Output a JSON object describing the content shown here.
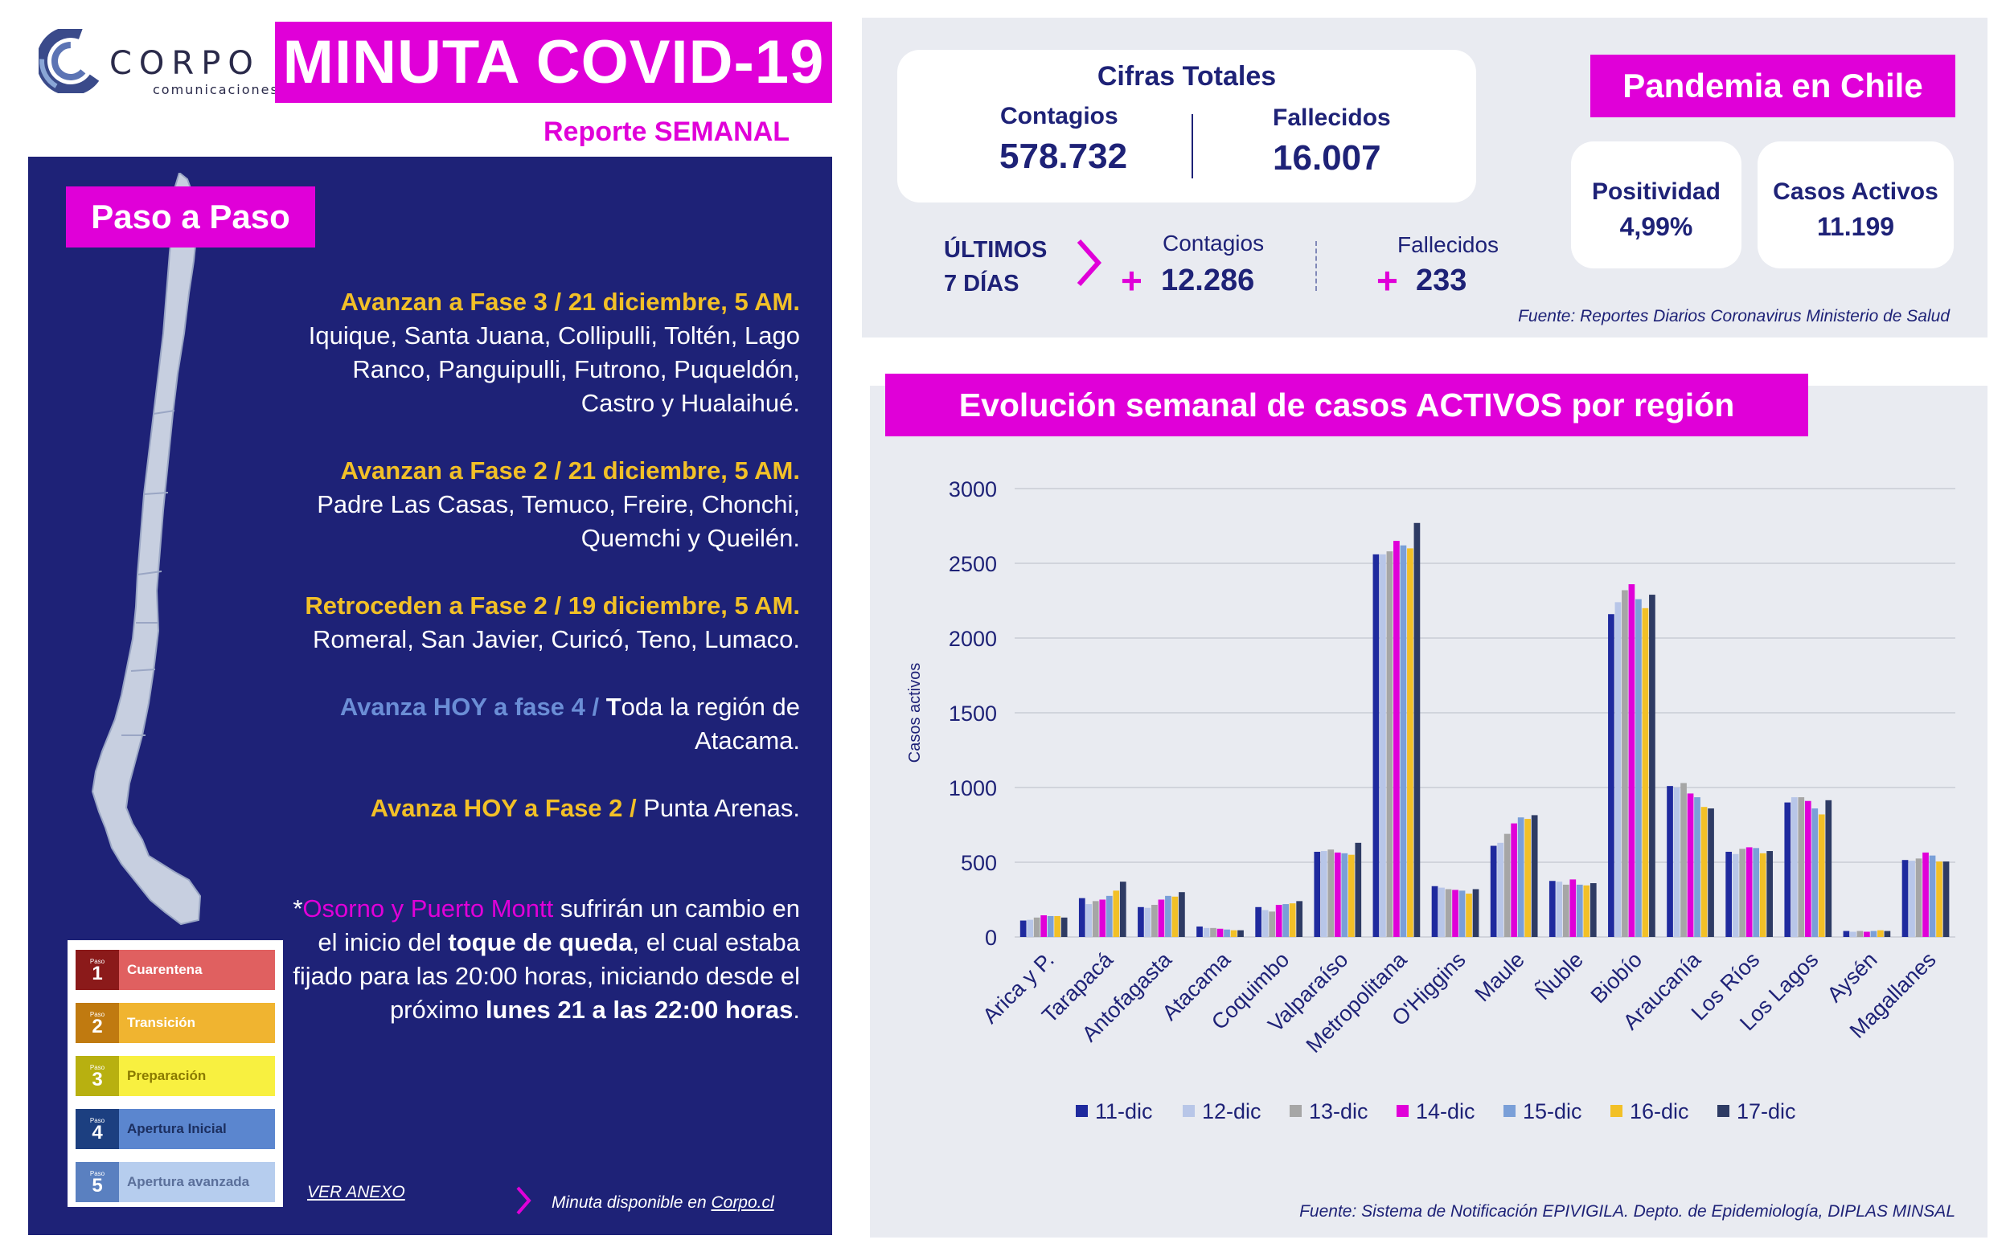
{
  "header": {
    "logo_word": "CORPO",
    "logo_sub": "comunicaciones",
    "title": "MINUTA COVID-19",
    "subtitle": "Reporte SEMANAL"
  },
  "paso_a_paso": {
    "title": "Paso a Paso",
    "b1_head": "Avanzan a Fase 3 / 21 diciembre, 5 AM.",
    "b1_body": "Iquique, Santa Juana, Collipulli, Toltén, Lago Ranco, Panguipulli, Futrono, Puqueldón, Castro y Hualaihué.",
    "b2_head": "Avanzan a Fase 2 / 21 diciembre, 5 AM.",
    "b2_body": "Padre Las Casas, Temuco, Freire, Chonchi, Quemchi y Queilén.",
    "b3_head": "Retroceden a Fase 2 / 19 diciembre, 5 AM.",
    "b3_body": "Romeral, San Javier, Curicó, Teno, Lumaco.",
    "b4_head": "Avanza HOY a fase 4  /",
    "b4_body_b": "T",
    "b4_body": "oda la región de Atacama.",
    "b5_head": "Avanza HOY a Fase 2 /",
    "b5_body": "Punta Arenas.",
    "note_star": "*",
    "note_mag": "Osorno y Puerto Montt",
    "note_1": " sufrirán un cambio en el inicio del ",
    "note_b1": "toque de queda",
    "note_2": ", el cual estaba fijado para las 20:00 horas, iniciando desde el próximo ",
    "note_b2": "lunes 21 a las 22:00 horas",
    "note_3": ".",
    "phase_small": "Paso",
    "phases": [
      {
        "num": "1",
        "label": "Cuarentena",
        "dark": "#8b1a1a",
        "light": "#e06060",
        "text": "#ffffff"
      },
      {
        "num": "2",
        "label": "Transición",
        "dark": "#c07a10",
        "light": "#f0b430",
        "text": "#ffffff"
      },
      {
        "num": "3",
        "label": "Preparación",
        "dark": "#b8b010",
        "light": "#f8f040",
        "text": "#8a7a00"
      },
      {
        "num": "4",
        "label": "Apertura Inicial",
        "dark": "#1c3f80",
        "light": "#5b86cf",
        "text": "#1c2f60"
      },
      {
        "num": "5",
        "label": "Apertura avanzada",
        "dark": "#5a80c0",
        "light": "#b6cdee",
        "text": "#5a6f9a"
      }
    ],
    "ver_anexo": "VER ANEXO",
    "minuta_text": "Minuta disponible en ",
    "minuta_link": "Corpo.cl"
  },
  "cifras": {
    "title": "Cifras Totales",
    "contagios_label": "Contagios",
    "contagios_value": "578.732",
    "fallecidos_label": "Fallecidos",
    "fallecidos_value": "16.007",
    "ultimos_1": "ÚLTIMOS",
    "ultimos_2": "7 DÍAS",
    "plus": "+",
    "week_contagios_label": "Contagios",
    "week_contagios_value": "12.286",
    "week_fallecidos_label": "Fallecidos",
    "week_fallecidos_value": "233",
    "fuente": "Fuente: Reportes Diarios Coronavirus Ministerio de Salud"
  },
  "pandemia": {
    "title": "Pandemia en Chile",
    "positividad_label": "Positividad",
    "positividad_value": "4,99%",
    "activos_label": "Casos Activos",
    "activos_value": "11.199"
  },
  "chart_title": "Evolución semanal de casos ACTIVOS por región",
  "chart_fuente": "Fuente: Sistema de Notificación EPIVIGILA. Depto. de Epidemiología, DIPLAS MINSAL",
  "colors": {
    "magenta": "#e000d8",
    "navy": "#1e2277",
    "yellow": "#f2c027"
  },
  "chart_data": {
    "type": "bar",
    "title": "Evolución semanal de casos ACTIVOS por región",
    "xlabel": "",
    "ylabel": "Casos activos",
    "ylim": [
      0,
      3000
    ],
    "yticks": [
      0,
      500,
      1000,
      1500,
      2000,
      2500,
      3000
    ],
    "grid": true,
    "legend_position": "bottom",
    "categories": [
      "Arica y P.",
      "Tarapacá",
      "Antofagasta",
      "Atacama",
      "Coquimbo",
      "Valparaíso",
      "Metropolitana",
      "O'Higgins",
      "Maule",
      "Ñuble",
      "Biobío",
      "Araucanía",
      "Los Ríos",
      "Los Lagos",
      "Aysén",
      "Magallanes"
    ],
    "series": [
      {
        "name": "11-dic",
        "color": "#1f2a9e",
        "values": [
          110,
          260,
          200,
          70,
          200,
          570,
          2560,
          340,
          610,
          375,
          2160,
          1010,
          570,
          900,
          40,
          515
        ]
      },
      {
        "name": "12-dic",
        "color": "#b8c6e8",
        "values": [
          115,
          220,
          195,
          60,
          180,
          575,
          2560,
          330,
          630,
          370,
          2240,
          1000,
          555,
          935,
          35,
          510
        ]
      },
      {
        "name": "13-dic",
        "color": "#a6a6a6",
        "values": [
          130,
          240,
          215,
          60,
          170,
          585,
          2580,
          320,
          690,
          350,
          2320,
          1030,
          590,
          935,
          40,
          525
        ]
      },
      {
        "name": "14-dic",
        "color": "#e000d8",
        "values": [
          145,
          250,
          250,
          55,
          215,
          565,
          2650,
          315,
          760,
          385,
          2360,
          960,
          600,
          910,
          35,
          565
        ]
      },
      {
        "name": "15-dic",
        "color": "#7a9fd8",
        "values": [
          140,
          275,
          275,
          50,
          220,
          560,
          2620,
          310,
          800,
          350,
          2260,
          935,
          595,
          860,
          40,
          545
        ]
      },
      {
        "name": "16-dic",
        "color": "#f2c027",
        "values": [
          140,
          310,
          270,
          45,
          225,
          550,
          2600,
          290,
          790,
          345,
          2200,
          870,
          560,
          820,
          45,
          505
        ]
      },
      {
        "name": "17-dic",
        "color": "#2e3b64",
        "values": [
          130,
          370,
          300,
          45,
          240,
          630,
          2770,
          320,
          815,
          360,
          2290,
          860,
          575,
          915,
          40,
          505
        ]
      }
    ]
  }
}
